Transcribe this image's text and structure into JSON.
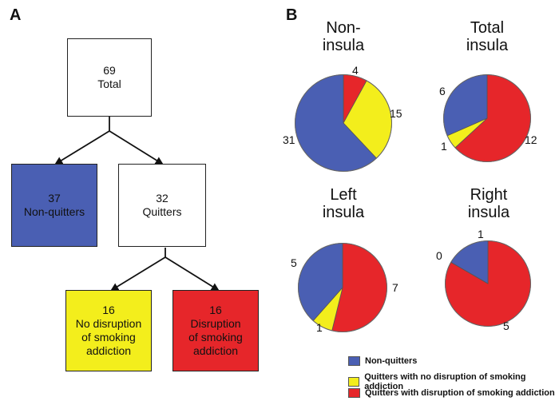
{
  "colors": {
    "blue": "#4a5fb3",
    "yellow": "#f3ee1c",
    "red": "#e6262a",
    "white": "#ffffff"
  },
  "panel_a": {
    "letter": "A",
    "total": {
      "count": "69",
      "label": "Total"
    },
    "non_quitters": {
      "count": "37",
      "label": "Non-quitters"
    },
    "quitters": {
      "count": "32",
      "label": "Quitters"
    },
    "no_disruption": {
      "count": "16",
      "line1": "No disruption",
      "line2": "of smoking",
      "line3": "addiction"
    },
    "disruption": {
      "count": "16",
      "line1": "Disruption",
      "line2": "of smoking",
      "line3": "addiction"
    }
  },
  "panel_b": {
    "letter": "B"
  },
  "chart_data": [
    {
      "type": "pie",
      "title_line1": "Non-",
      "title_line2": "insula",
      "slices": [
        {
          "category": "Quitters with disruption of smoking addiction",
          "value": 4
        },
        {
          "category": "Quitters with no disruption of smoking addiction",
          "value": 15
        },
        {
          "category": "Non-quitters",
          "value": 31
        }
      ],
      "labels": [
        "4",
        "15",
        "31"
      ]
    },
    {
      "type": "pie",
      "title_line1": "Total",
      "title_line2": "insula",
      "slices": [
        {
          "category": "Quitters with disruption of smoking addiction",
          "value": 12
        },
        {
          "category": "Quitters with no disruption of smoking addiction",
          "value": 1
        },
        {
          "category": "Non-quitters",
          "value": 6
        }
      ],
      "labels": [
        "12",
        "1",
        "6"
      ]
    },
    {
      "type": "pie",
      "title_line1": "Left",
      "title_line2": "insula",
      "slices": [
        {
          "category": "Quitters with disruption of smoking addiction",
          "value": 7
        },
        {
          "category": "Quitters with no disruption of smoking addiction",
          "value": 1
        },
        {
          "category": "Non-quitters",
          "value": 5
        }
      ],
      "labels": [
        "7",
        "1",
        "5"
      ]
    },
    {
      "type": "pie",
      "title_line1": "Right",
      "title_line2": "insula",
      "slices": [
        {
          "category": "Quitters with disruption of smoking addiction",
          "value": 5
        },
        {
          "category": "Quitters with no disruption of smoking addiction",
          "value": 0
        },
        {
          "category": "Non-quitters",
          "value": 1
        }
      ],
      "labels": [
        "5",
        "0",
        "1"
      ]
    }
  ],
  "legend": [
    {
      "label": "Non-quitters",
      "color": "#4a5fb3"
    },
    {
      "label": "Quitters with no disruption of smoking addiction",
      "color": "#f3ee1c"
    },
    {
      "label": "Quitters with disruption of smoking addiction",
      "color": "#e6262a"
    }
  ]
}
